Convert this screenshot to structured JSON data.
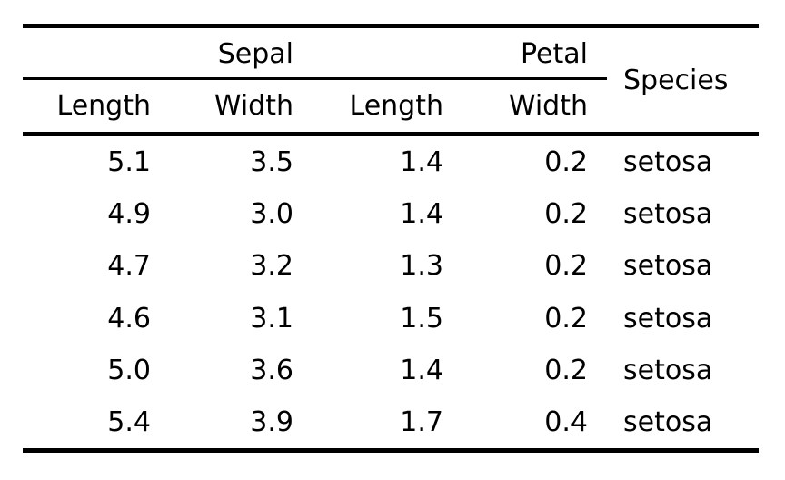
{
  "table": {
    "spanners": {
      "sepal": "Sepal",
      "petal": "Petal"
    },
    "headers": {
      "sepal_length": "Length",
      "sepal_width": "Width",
      "petal_length": "Length",
      "petal_width": "Width",
      "species": "Species"
    },
    "rows": [
      [
        "5.1",
        "3.5",
        "1.4",
        "0.2",
        "setosa"
      ],
      [
        "4.9",
        "3.0",
        "1.4",
        "0.2",
        "setosa"
      ],
      [
        "4.7",
        "3.2",
        "1.3",
        "0.2",
        "setosa"
      ],
      [
        "4.6",
        "3.1",
        "1.5",
        "0.2",
        "setosa"
      ],
      [
        "5.0",
        "3.6",
        "1.4",
        "0.2",
        "setosa"
      ],
      [
        "5.4",
        "3.9",
        "1.7",
        "0.4",
        "setosa"
      ]
    ]
  },
  "colors": {
    "text": "#000000",
    "rule": "#000000",
    "background": "#ffffff"
  },
  "chart_data": {
    "type": "table",
    "column_groups": [
      {
        "label": "Sepal",
        "columns": [
          "Length",
          "Width"
        ]
      },
      {
        "label": "Petal",
        "columns": [
          "Length",
          "Width"
        ]
      }
    ],
    "columns": [
      "Sepal Length",
      "Sepal Width",
      "Petal Length",
      "Petal Width",
      "Species"
    ],
    "rows": [
      [
        5.1,
        3.5,
        1.4,
        0.2,
        "setosa"
      ],
      [
        4.9,
        3.0,
        1.4,
        0.2,
        "setosa"
      ],
      [
        4.7,
        3.2,
        1.3,
        0.2,
        "setosa"
      ],
      [
        4.6,
        3.1,
        1.5,
        0.2,
        "setosa"
      ],
      [
        5.0,
        3.6,
        1.4,
        0.2,
        "setosa"
      ],
      [
        5.4,
        3.9,
        1.7,
        0.4,
        "setosa"
      ]
    ],
    "layout": {
      "rules": [
        "top-thick",
        "spanner-thin-cols1-4",
        "below-header-thick",
        "bottom-thick"
      ],
      "numeric_alignment": "right",
      "species_alignment": "left"
    }
  }
}
